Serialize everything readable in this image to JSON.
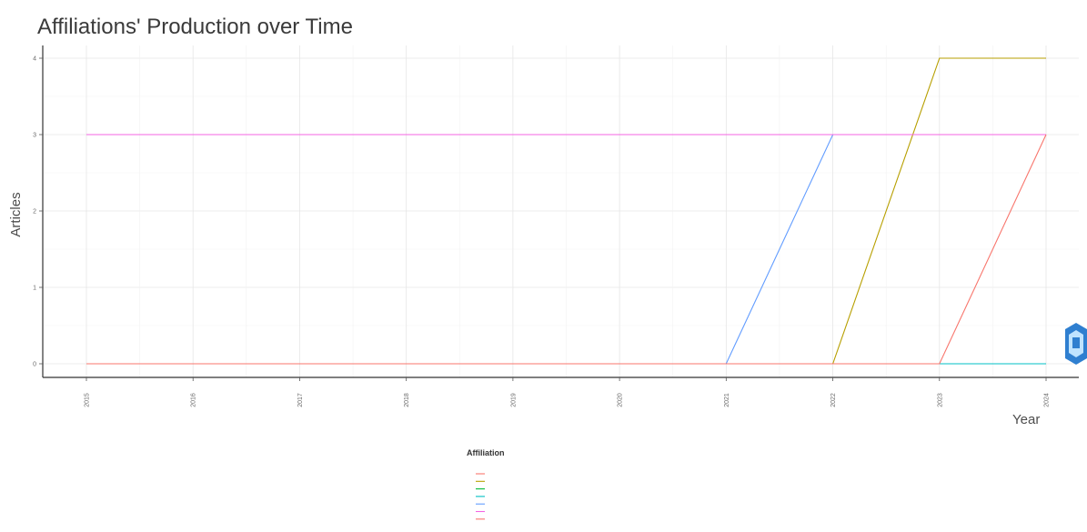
{
  "chart_data": {
    "type": "line",
    "title": "Affiliations' Production over Time",
    "xlabel": "Year",
    "ylabel": "Articles",
    "x": [
      2015,
      2016,
      2017,
      2018,
      2019,
      2020,
      2021,
      2022,
      2023,
      2024
    ],
    "xlim": [
      2015,
      2024
    ],
    "ylim": [
      0,
      4
    ],
    "yticks": [
      0,
      1,
      2,
      3,
      4
    ],
    "grid": true,
    "legend_title": "Affiliation",
    "legend_position": "bottom",
    "series": [
      {
        "name": "",
        "color": "#f8766d",
        "values": [
          0,
          0,
          0,
          0,
          0,
          0,
          0,
          0,
          0,
          0
        ]
      },
      {
        "name": "",
        "color": "#b79f00",
        "values": [
          0,
          0,
          0,
          0,
          0,
          0,
          0,
          0,
          4,
          4
        ]
      },
      {
        "name": "",
        "color": "#00ba38",
        "values": [
          0,
          0,
          0,
          0,
          0,
          0,
          0,
          0,
          0,
          0
        ]
      },
      {
        "name": "",
        "color": "#00bfc4",
        "values": [
          0,
          0,
          0,
          0,
          0,
          0,
          0,
          0,
          0,
          0
        ]
      },
      {
        "name": "",
        "color": "#619cff",
        "values": [
          0,
          0,
          0,
          0,
          0,
          0,
          0,
          3,
          3,
          3
        ]
      },
      {
        "name": "",
        "color": "#f564e3",
        "values": [
          3,
          3,
          3,
          3,
          3,
          3,
          3,
          3,
          3,
          3
        ]
      },
      {
        "name": "",
        "color": "#f8766d",
        "values": [
          0,
          0,
          0,
          0,
          0,
          0,
          0,
          0,
          0,
          3
        ]
      }
    ]
  },
  "logo": {
    "icon": "hexagon-logo-icon",
    "color": "#2f7fd0"
  }
}
